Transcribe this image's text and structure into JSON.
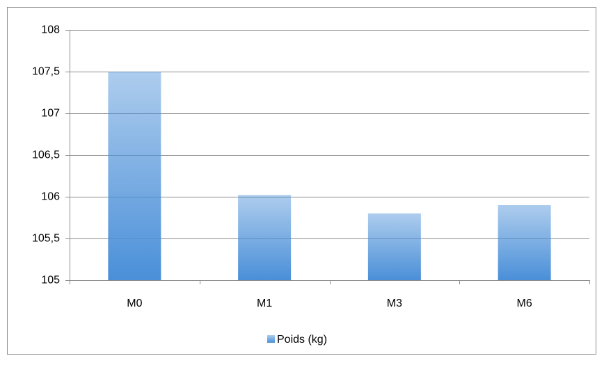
{
  "chart_data": {
    "type": "bar",
    "categories": [
      "M0",
      "M1",
      "M3",
      "M6"
    ],
    "series": [
      {
        "name": "Poids (kg)",
        "color": "#4a8fd8",
        "values": [
          107.5,
          106.02,
          105.8,
          105.9
        ]
      }
    ],
    "ylim": [
      105,
      108
    ],
    "yticks": [
      105,
      {
        "value": 105.5,
        "label": "105,5"
      },
      106,
      {
        "value": 106.5,
        "label": "106,5"
      },
      107,
      {
        "value": 107.5,
        "label": "107,5"
      },
      108
    ],
    "grid": true,
    "legend": "bottom"
  }
}
